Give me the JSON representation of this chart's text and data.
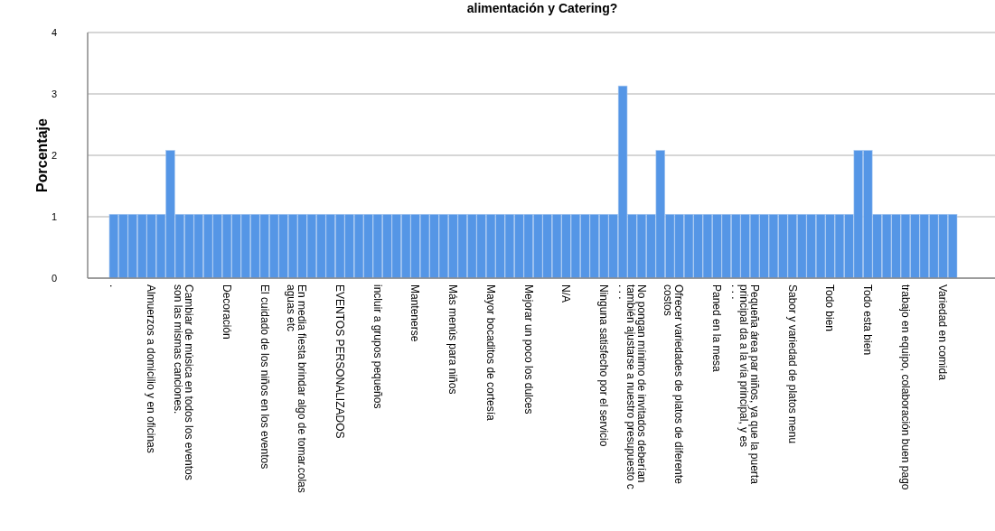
{
  "chart_data": {
    "type": "bar",
    "title": "alimentación y Catering?",
    "ylabel": "Porcentaje",
    "categories": [
      ".",
      null,
      null,
      null,
      "Almuerzos a domicilio y en oficinas",
      null,
      null,
      null,
      "Cambiar de música en todos los eventos\nson las mismas canciones.",
      null,
      null,
      null,
      "Decoración",
      null,
      null,
      null,
      "El cuidado de los niños en los eventos",
      null,
      null,
      null,
      "En media fiesta brindar algo de tomar.colas\naguas etc",
      null,
      null,
      null,
      "EVENTOS PERSONALIZADOS",
      null,
      null,
      null,
      "incluir a grupos pequeños",
      null,
      null,
      null,
      "Mantenerse",
      null,
      null,
      null,
      "Más menús para niños",
      null,
      null,
      null,
      "Mayor bocaditos de cortesía",
      null,
      null,
      null,
      "Mejorar un poco los dulces",
      null,
      null,
      null,
      "N/A",
      null,
      null,
      null,
      "Ninguna satisfecho por el servicio",
      null,
      ". . .",
      null,
      "No pongan mínimo de invitados deberían\ntambién ajustarse a nuestro presupuesto c",
      null,
      null,
      null,
      "Ofrecer variedades de platos de diferente\ncostos",
      null,
      null,
      null,
      "Paned en la mesa",
      null,
      ". . .",
      null,
      "Pequeña área par niños, ya que la puerta\nprincipal da a la vía principal, y es",
      null,
      null,
      null,
      "Sabor y variedad de platos menu",
      null,
      null,
      null,
      "Todo bien",
      null,
      null,
      null,
      "Todo esta bien",
      null,
      null,
      null,
      "trabajo en equipo, colaboración buen pago",
      null,
      null,
      null,
      "Variedad en comida",
      null
    ],
    "values": [
      1.04,
      1.04,
      1.04,
      1.04,
      1.04,
      1.04,
      2.08,
      1.04,
      1.04,
      1.04,
      1.04,
      1.04,
      1.04,
      1.04,
      1.04,
      1.04,
      1.04,
      1.04,
      1.04,
      1.04,
      1.04,
      1.04,
      1.04,
      1.04,
      1.04,
      1.04,
      1.04,
      1.04,
      1.04,
      1.04,
      1.04,
      1.04,
      1.04,
      1.04,
      1.04,
      1.04,
      1.04,
      1.04,
      1.04,
      1.04,
      1.04,
      1.04,
      1.04,
      1.04,
      1.04,
      1.04,
      1.04,
      1.04,
      1.04,
      1.04,
      1.04,
      1.04,
      1.04,
      1.04,
      3.13,
      1.04,
      1.04,
      1.04,
      2.08,
      1.04,
      1.04,
      1.04,
      1.04,
      1.04,
      1.04,
      1.04,
      1.04,
      1.04,
      1.04,
      1.04,
      1.04,
      1.04,
      1.04,
      1.04,
      1.04,
      1.04,
      1.04,
      1.04,
      1.04,
      2.08,
      2.08,
      1.04,
      1.04,
      1.04,
      1.04,
      1.04,
      1.04,
      1.04,
      1.04,
      1.04
    ],
    "color": "#5596e6",
    "ylim": [
      0,
      4
    ],
    "yticks": [
      0,
      1,
      2,
      3,
      4
    ],
    "grid": "y"
  }
}
